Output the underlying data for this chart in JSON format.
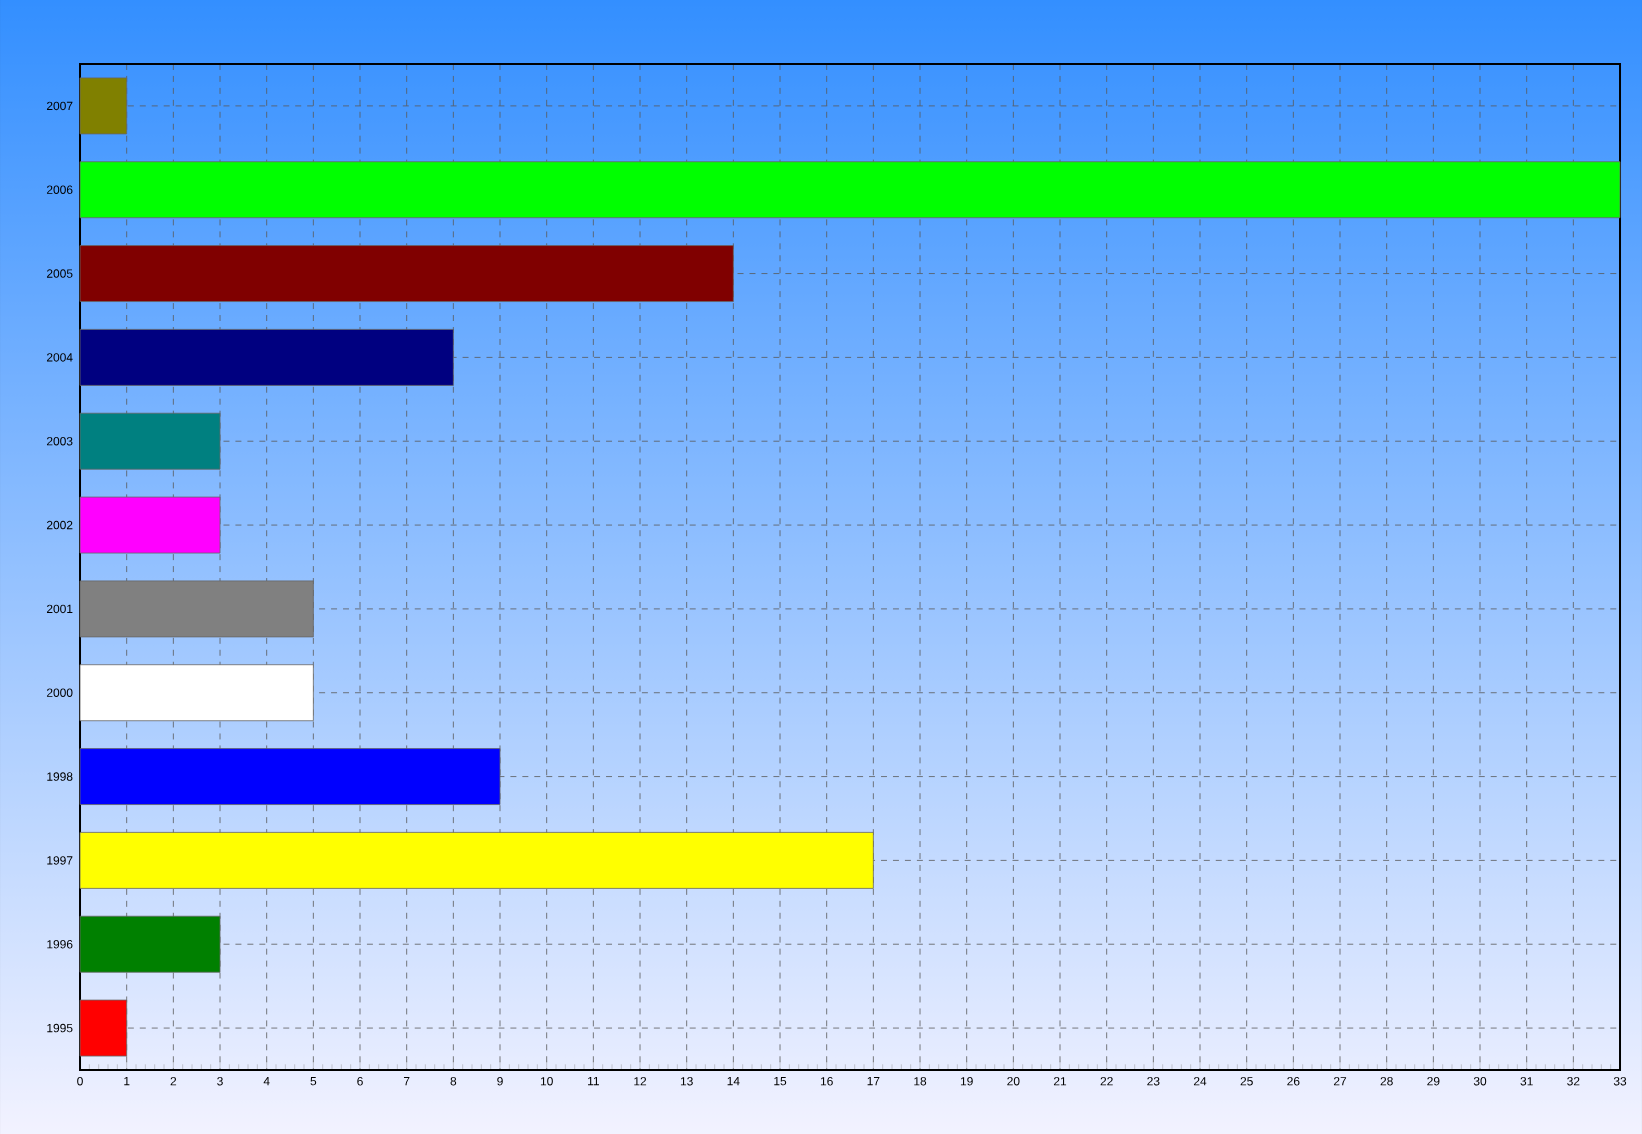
{
  "chart_data": {
    "type": "bar",
    "orientation": "horizontal",
    "categories": [
      "2007",
      "2006",
      "2005",
      "2004",
      "2003",
      "2002",
      "2001",
      "2000",
      "1998",
      "1997",
      "1996",
      "1995"
    ],
    "values": [
      1,
      33,
      14,
      8,
      3,
      3,
      5,
      5,
      9,
      17,
      3,
      1
    ],
    "colors": [
      "#808000",
      "#00ff00",
      "#800000",
      "#000080",
      "#008080",
      "#ff00ff",
      "#808080",
      "#ffffff",
      "#0000ff",
      "#ffff00",
      "#008000",
      "#ff0000"
    ],
    "xlim": [
      0,
      33
    ],
    "xticks": [
      0,
      1,
      2,
      3,
      4,
      5,
      6,
      7,
      8,
      9,
      10,
      11,
      12,
      13,
      14,
      15,
      16,
      17,
      18,
      19,
      20,
      21,
      22,
      23,
      24,
      25,
      26,
      27,
      28,
      29,
      30,
      31,
      32,
      33
    ],
    "grid": true
  }
}
